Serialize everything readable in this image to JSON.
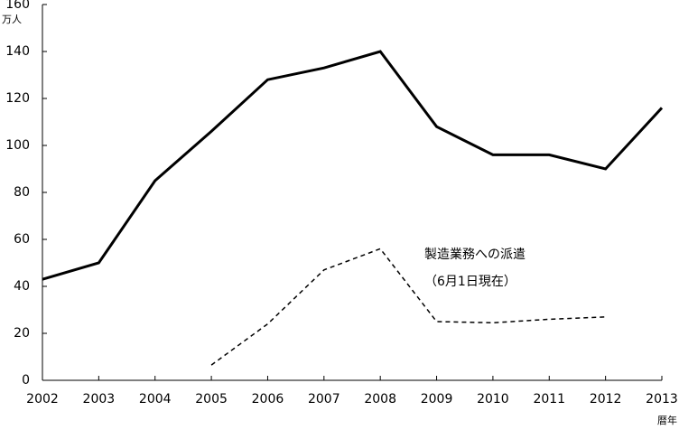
{
  "chart_data": {
    "type": "line",
    "y_label": "万人",
    "x_label": "暦年",
    "x": [
      2002,
      2003,
      2004,
      2005,
      2006,
      2007,
      2008,
      2009,
      2010,
      2011,
      2012,
      2013
    ],
    "series": [
      {
        "color": "#000000",
        "dash": false,
        "values": [
          43,
          50,
          85,
          106,
          128,
          133,
          140,
          108,
          96,
          96,
          90,
          116
        ]
      },
      {
        "name": "製造業務への派遣",
        "color": "#000000",
        "dash": true,
        "values": [
          null,
          null,
          null,
          6.5,
          24,
          47,
          56,
          25,
          24.5,
          26,
          27,
          null
        ]
      }
    ],
    "annotation": "（6月1日現在）",
    "xlim": [
      2002,
      2013
    ],
    "xticks": [
      2002,
      2003,
      2004,
      2005,
      2006,
      2007,
      2008,
      2009,
      2010,
      2011,
      2012,
      2013
    ],
    "ylim": [
      0,
      160
    ],
    "yticks": [
      0,
      20,
      40,
      60,
      80,
      100,
      120,
      140,
      160
    ],
    "grid": false
  }
}
